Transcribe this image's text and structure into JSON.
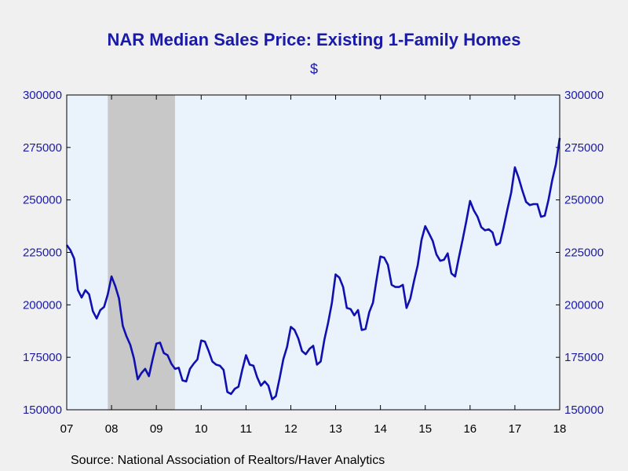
{
  "chart_data": {
    "type": "line",
    "title": "NAR Median Sales Price: Existing 1-Family Homes",
    "subtitle": "$",
    "source": "Source:  National Association of Realtors/Haver Analytics",
    "x_start": "2007-01",
    "x_end": "2018-01",
    "x_ticks": [
      "07",
      "08",
      "09",
      "10",
      "11",
      "12",
      "13",
      "14",
      "15",
      "16",
      "17",
      "18"
    ],
    "y_ticks": [
      "150000",
      "175000",
      "200000",
      "225000",
      "250000",
      "275000",
      "300000"
    ],
    "ylim": [
      150000,
      300000
    ],
    "recession": {
      "start": "2007-12",
      "end": "2009-06",
      "color": "#c8c8c8"
    },
    "colors": {
      "line": "#1010b0",
      "plot_bg": "#eaf2fc",
      "text": "#1a1aa8"
    },
    "series": [
      {
        "values": [
          {
            "x": "2007-01",
            "y": 228500
          },
          {
            "x": "2007-02",
            "y": 226000
          },
          {
            "x": "2007-03",
            "y": 222000
          },
          {
            "x": "2007-04",
            "y": 207000
          },
          {
            "x": "2007-05",
            "y": 203500
          },
          {
            "x": "2007-06",
            "y": 207000
          },
          {
            "x": "2007-07",
            "y": 205000
          },
          {
            "x": "2007-08",
            "y": 197000
          },
          {
            "x": "2007-09",
            "y": 193500
          },
          {
            "x": "2007-10",
            "y": 197500
          },
          {
            "x": "2007-11",
            "y": 199000
          },
          {
            "x": "2007-12",
            "y": 205000
          },
          {
            "x": "2008-01",
            "y": 213500
          },
          {
            "x": "2008-02",
            "y": 209000
          },
          {
            "x": "2008-03",
            "y": 203000
          },
          {
            "x": "2008-04",
            "y": 190000
          },
          {
            "x": "2008-05",
            "y": 185000
          },
          {
            "x": "2008-06",
            "y": 181000
          },
          {
            "x": "2008-07",
            "y": 174500
          },
          {
            "x": "2008-08",
            "y": 164500
          },
          {
            "x": "2008-09",
            "y": 167500
          },
          {
            "x": "2008-10",
            "y": 169500
          },
          {
            "x": "2008-11",
            "y": 166000
          },
          {
            "x": "2008-12",
            "y": 174000
          },
          {
            "x": "2009-01",
            "y": 181500
          },
          {
            "x": "2009-02",
            "y": 182000
          },
          {
            "x": "2009-03",
            "y": 177000
          },
          {
            "x": "2009-04",
            "y": 176000
          },
          {
            "x": "2009-05",
            "y": 172000
          },
          {
            "x": "2009-06",
            "y": 169500
          },
          {
            "x": "2009-07",
            "y": 170000
          },
          {
            "x": "2009-08",
            "y": 164000
          },
          {
            "x": "2009-09",
            "y": 163500
          },
          {
            "x": "2009-10",
            "y": 169500
          },
          {
            "x": "2009-11",
            "y": 172000
          },
          {
            "x": "2009-12",
            "y": 174000
          },
          {
            "x": "2010-01",
            "y": 183000
          },
          {
            "x": "2010-02",
            "y": 182500
          },
          {
            "x": "2010-03",
            "y": 178000
          },
          {
            "x": "2010-04",
            "y": 173000
          },
          {
            "x": "2010-05",
            "y": 171500
          },
          {
            "x": "2010-06",
            "y": 171000
          },
          {
            "x": "2010-07",
            "y": 169000
          },
          {
            "x": "2010-08",
            "y": 158500
          },
          {
            "x": "2010-09",
            "y": 157500
          },
          {
            "x": "2010-10",
            "y": 160000
          },
          {
            "x": "2010-11",
            "y": 161000
          },
          {
            "x": "2010-12",
            "y": 169000
          },
          {
            "x": "2011-01",
            "y": 176000
          },
          {
            "x": "2011-02",
            "y": 171500
          },
          {
            "x": "2011-03",
            "y": 171000
          },
          {
            "x": "2011-04",
            "y": 165500
          },
          {
            "x": "2011-05",
            "y": 161500
          },
          {
            "x": "2011-06",
            "y": 163500
          },
          {
            "x": "2011-07",
            "y": 161500
          },
          {
            "x": "2011-08",
            "y": 155000
          },
          {
            "x": "2011-09",
            "y": 156500
          },
          {
            "x": "2011-10",
            "y": 165000
          },
          {
            "x": "2011-11",
            "y": 174000
          },
          {
            "x": "2011-12",
            "y": 180000
          },
          {
            "x": "2012-01",
            "y": 189500
          },
          {
            "x": "2012-02",
            "y": 188000
          },
          {
            "x": "2012-03",
            "y": 184000
          },
          {
            "x": "2012-04",
            "y": 178000
          },
          {
            "x": "2012-05",
            "y": 176500
          },
          {
            "x": "2012-06",
            "y": 179000
          },
          {
            "x": "2012-07",
            "y": 180500
          },
          {
            "x": "2012-08",
            "y": 171500
          },
          {
            "x": "2012-09",
            "y": 173000
          },
          {
            "x": "2012-10",
            "y": 183500
          },
          {
            "x": "2012-11",
            "y": 191500
          },
          {
            "x": "2012-12",
            "y": 201000
          },
          {
            "x": "2013-01",
            "y": 214500
          },
          {
            "x": "2013-02",
            "y": 213000
          },
          {
            "x": "2013-03",
            "y": 208500
          },
          {
            "x": "2013-04",
            "y": 198500
          },
          {
            "x": "2013-05",
            "y": 198000
          },
          {
            "x": "2013-06",
            "y": 195000
          },
          {
            "x": "2013-07",
            "y": 197500
          },
          {
            "x": "2013-08",
            "y": 188000
          },
          {
            "x": "2013-09",
            "y": 188500
          },
          {
            "x": "2013-10",
            "y": 196500
          },
          {
            "x": "2013-11",
            "y": 201000
          },
          {
            "x": "2013-12",
            "y": 212500
          },
          {
            "x": "2014-01",
            "y": 223000
          },
          {
            "x": "2014-02",
            "y": 222500
          },
          {
            "x": "2014-03",
            "y": 219000
          },
          {
            "x": "2014-04",
            "y": 209500
          },
          {
            "x": "2014-05",
            "y": 208500
          },
          {
            "x": "2014-06",
            "y": 208500
          },
          {
            "x": "2014-07",
            "y": 209500
          },
          {
            "x": "2014-08",
            "y": 198500
          },
          {
            "x": "2014-09",
            "y": 203000
          },
          {
            "x": "2014-10",
            "y": 211500
          },
          {
            "x": "2014-11",
            "y": 219000
          },
          {
            "x": "2014-12",
            "y": 231000
          },
          {
            "x": "2015-01",
            "y": 237500
          },
          {
            "x": "2015-02",
            "y": 234000
          },
          {
            "x": "2015-03",
            "y": 230500
          },
          {
            "x": "2015-04",
            "y": 224000
          },
          {
            "x": "2015-05",
            "y": 221000
          },
          {
            "x": "2015-06",
            "y": 221500
          },
          {
            "x": "2015-07",
            "y": 224500
          },
          {
            "x": "2015-08",
            "y": 215000
          },
          {
            "x": "2015-09",
            "y": 213500
          },
          {
            "x": "2015-10",
            "y": 222500
          },
          {
            "x": "2015-11",
            "y": 231000
          },
          {
            "x": "2015-12",
            "y": 240000
          },
          {
            "x": "2016-01",
            "y": 249500
          },
          {
            "x": "2016-02",
            "y": 245000
          },
          {
            "x": "2016-03",
            "y": 242000
          },
          {
            "x": "2016-04",
            "y": 237000
          },
          {
            "x": "2016-05",
            "y": 235500
          },
          {
            "x": "2016-06",
            "y": 236000
          },
          {
            "x": "2016-07",
            "y": 234500
          },
          {
            "x": "2016-08",
            "y": 228500
          },
          {
            "x": "2016-09",
            "y": 229500
          },
          {
            "x": "2016-10",
            "y": 237000
          },
          {
            "x": "2016-11",
            "y": 245500
          },
          {
            "x": "2016-12",
            "y": 253500
          },
          {
            "x": "2017-01",
            "y": 265500
          },
          {
            "x": "2017-02",
            "y": 260500
          },
          {
            "x": "2017-03",
            "y": 254500
          },
          {
            "x": "2017-04",
            "y": 249000
          },
          {
            "x": "2017-05",
            "y": 247500
          },
          {
            "x": "2017-06",
            "y": 248000
          },
          {
            "x": "2017-07",
            "y": 248000
          },
          {
            "x": "2017-08",
            "y": 242000
          },
          {
            "x": "2017-09",
            "y": 242500
          },
          {
            "x": "2017-10",
            "y": 250000
          },
          {
            "x": "2017-11",
            "y": 259500
          },
          {
            "x": "2017-12",
            "y": 267000
          },
          {
            "x": "2018-01",
            "y": 279500
          }
        ]
      }
    ]
  }
}
